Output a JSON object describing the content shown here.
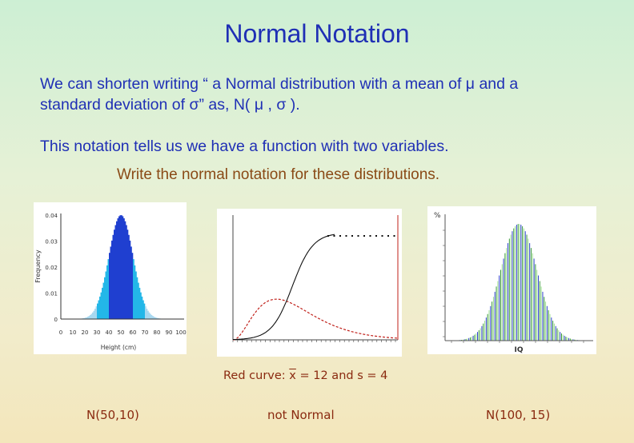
{
  "slide": {
    "title": "Normal Notation",
    "paragraph1_line1": "We can shorten writing “ a Normal distribution with a mean of μ and a",
    "paragraph1_line2": "standard deviation of σ” as, N( μ , σ ).",
    "paragraph2": "This notation tells us we have a function with two variables.",
    "instruction": "Write the normal notation for these distributions."
  },
  "chart1": {
    "ylabel": "Frequency",
    "xlabel": "Height (cm)",
    "xticks": [
      "0",
      "10",
      "20",
      "30",
      "40",
      "50",
      "60",
      "70",
      "80",
      "90",
      "100"
    ],
    "yticks": [
      "0",
      "0.01",
      "0.02",
      "0.03",
      "0.04"
    ],
    "colors": {
      "center": "#1f3fd0",
      "middle": "#23b7e8",
      "tail": "#a8d8f0"
    }
  },
  "chart2": {
    "series": [
      {
        "name": "red",
        "color": "#c0201a"
      },
      {
        "name": "black",
        "color": "#111111"
      }
    ]
  },
  "chart3": {
    "ylabel": "%",
    "xlabel": "IQ",
    "colors": [
      "#2f3fcf",
      "#3a9a3a",
      "#9fe08f"
    ]
  },
  "note": {
    "prefix": "Red curve:  ",
    "mean_symbol": "x",
    "rest": " = 12 and s = 4"
  },
  "answers": [
    "N(50,10)",
    "not Normal",
    "N(100, 15)"
  ]
}
